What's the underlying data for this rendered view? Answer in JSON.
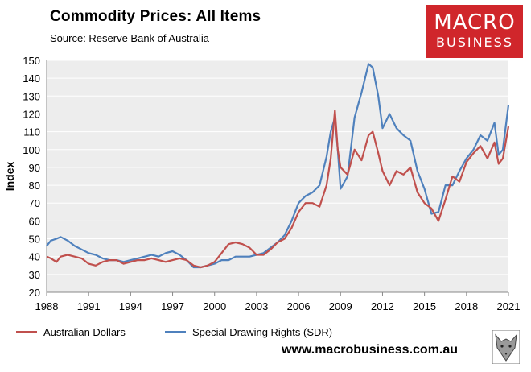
{
  "title": "Commodity Prices: All Items",
  "source": "Source:  Reserve Bank of Australia",
  "logo": {
    "line1": "MACRO",
    "line2": "BUSINESS",
    "color": "#d0262b"
  },
  "url": "www.macrobusiness.com.au",
  "chart_data": {
    "type": "line",
    "ylabel": "Index",
    "xlabel": "",
    "ylim": [
      20,
      150
    ],
    "xlim": [
      1988,
      2021
    ],
    "yticks": [
      20,
      30,
      40,
      50,
      60,
      70,
      80,
      90,
      100,
      110,
      120,
      130,
      140,
      150
    ],
    "xticks": [
      1988,
      1991,
      1994,
      1997,
      2000,
      2003,
      2006,
      2009,
      2012,
      2015,
      2018,
      2021
    ],
    "grid": true,
    "legend_position": "bottom",
    "series": [
      {
        "name": "Australian Dollars",
        "color": "#c0504d",
        "x": [
          1988.0,
          1988.3,
          1988.7,
          1989.0,
          1989.5,
          1990.0,
          1990.5,
          1991.0,
          1991.5,
          1992.0,
          1992.5,
          1993.0,
          1993.5,
          1994.0,
          1994.5,
          1995.0,
          1995.5,
          1996.0,
          1996.5,
          1997.0,
          1997.5,
          1998.0,
          1998.5,
          1999.0,
          1999.5,
          2000.0,
          2000.5,
          2001.0,
          2001.5,
          2002.0,
          2002.5,
          2003.0,
          2003.5,
          2004.0,
          2004.5,
          2005.0,
          2005.5,
          2006.0,
          2006.5,
          2007.0,
          2007.5,
          2008.0,
          2008.3,
          2008.6,
          2008.8,
          2009.0,
          2009.5,
          2010.0,
          2010.5,
          2011.0,
          2011.3,
          2011.7,
          2012.0,
          2012.5,
          2013.0,
          2013.5,
          2014.0,
          2014.5,
          2015.0,
          2015.5,
          2016.0,
          2016.5,
          2017.0,
          2017.5,
          2018.0,
          2018.5,
          2019.0,
          2019.5,
          2020.0,
          2020.3,
          2020.6,
          2021.0
        ],
        "values": [
          40,
          39,
          37,
          40,
          41,
          40,
          39,
          36,
          35,
          37,
          38,
          38,
          36,
          37,
          38,
          38,
          39,
          38,
          37,
          38,
          39,
          38,
          35,
          34,
          35,
          37,
          42,
          47,
          48,
          47,
          45,
          41,
          41,
          44,
          48,
          50,
          56,
          65,
          70,
          70,
          68,
          80,
          95,
          122,
          100,
          90,
          86,
          100,
          94,
          108,
          110,
          98,
          88,
          80,
          88,
          86,
          90,
          76,
          70,
          67,
          60,
          72,
          85,
          82,
          93,
          98,
          102,
          95,
          104,
          92,
          95,
          113
        ]
      },
      {
        "name": "Special Drawing Rights (SDR)",
        "color": "#4f81bd",
        "x": [
          1988.0,
          1988.3,
          1988.7,
          1989.0,
          1989.5,
          1990.0,
          1990.5,
          1991.0,
          1991.5,
          1992.0,
          1992.5,
          1993.0,
          1993.5,
          1994.0,
          1994.5,
          1995.0,
          1995.5,
          1996.0,
          1996.5,
          1997.0,
          1997.5,
          1998.0,
          1998.5,
          1999.0,
          1999.5,
          2000.0,
          2000.5,
          2001.0,
          2001.5,
          2002.0,
          2002.5,
          2003.0,
          2003.5,
          2004.0,
          2004.5,
          2005.0,
          2005.5,
          2006.0,
          2006.5,
          2007.0,
          2007.5,
          2008.0,
          2008.3,
          2008.6,
          2008.8,
          2009.0,
          2009.5,
          2010.0,
          2010.5,
          2011.0,
          2011.3,
          2011.7,
          2012.0,
          2012.5,
          2013.0,
          2013.5,
          2014.0,
          2014.5,
          2015.0,
          2015.5,
          2016.0,
          2016.5,
          2017.0,
          2017.5,
          2018.0,
          2018.5,
          2019.0,
          2019.5,
          2020.0,
          2020.3,
          2020.6,
          2021.0
        ],
        "values": [
          46,
          49,
          50,
          51,
          49,
          46,
          44,
          42,
          41,
          39,
          38,
          38,
          37,
          38,
          39,
          40,
          41,
          40,
          42,
          43,
          41,
          38,
          34,
          34,
          35,
          36,
          38,
          38,
          40,
          40,
          40,
          41,
          42,
          45,
          48,
          52,
          60,
          70,
          74,
          76,
          80,
          96,
          110,
          118,
          100,
          78,
          85,
          118,
          132,
          148,
          146,
          130,
          112,
          120,
          112,
          108,
          105,
          88,
          78,
          64,
          65,
          80,
          80,
          88,
          95,
          100,
          108,
          105,
          115,
          97,
          100,
          125
        ]
      }
    ]
  }
}
